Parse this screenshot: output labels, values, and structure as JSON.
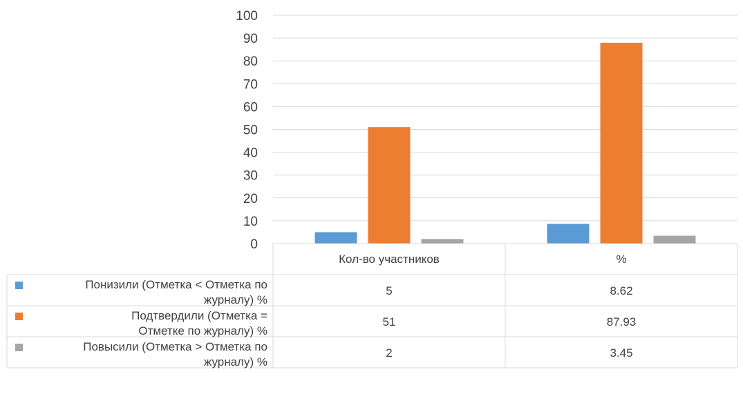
{
  "chart_data": {
    "type": "bar",
    "categories": [
      "Кол-во участников",
      "%"
    ],
    "series": [
      {
        "name": "Понизили (Отметка < Отметка по журналу) %",
        "legend_lines": [
          "Понизили (Отметка < Отметка по",
          "журналу) %"
        ],
        "values": [
          5,
          8.62
        ],
        "labels": [
          "5",
          "8.62"
        ],
        "color": "#5b9bd5"
      },
      {
        "name": "Подтвердили (Отметка = Отметке по журналу) %",
        "legend_lines": [
          "Подтвердили (Отметка =",
          "Отметке по журналу) %"
        ],
        "values": [
          51,
          87.93
        ],
        "labels": [
          "51",
          "87.93"
        ],
        "color": "#ed7d31"
      },
      {
        "name": "Повысили (Отметка > Отметка по журналу) %",
        "legend_lines": [
          "Повысили (Отметка > Отметка по",
          "журналу) %"
        ],
        "values": [
          2,
          3.45
        ],
        "labels": [
          "2",
          "3.45"
        ],
        "color": "#a5a5a5"
      }
    ],
    "ylim": [
      0,
      100
    ],
    "yticks": [
      0,
      10,
      20,
      30,
      40,
      50,
      60,
      70,
      80,
      90,
      100
    ],
    "grid": true,
    "legend": "data-table"
  }
}
